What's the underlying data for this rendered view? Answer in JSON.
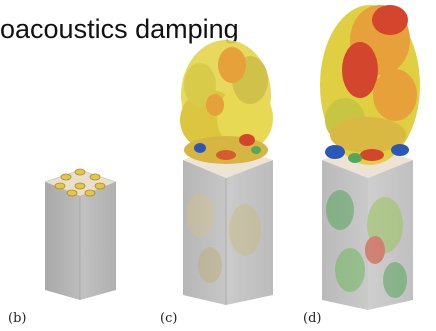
{
  "header": {
    "title": "oacoustics damping"
  },
  "panels": [
    {
      "label": "(b)",
      "state": "no-flow"
    },
    {
      "label": "(c)",
      "state": "moderate-turbulence"
    },
    {
      "label": "(d)",
      "state": "strong-turbulence"
    }
  ],
  "colors": {
    "column_gray": "#b9b9b9",
    "top_cap": "#e8dccb",
    "flame_yellow": "#e0cf43",
    "flame_orange": "#e6a13a",
    "flame_red": "#d4452d",
    "blue": "#2b57b8",
    "green": "#58a55c"
  }
}
